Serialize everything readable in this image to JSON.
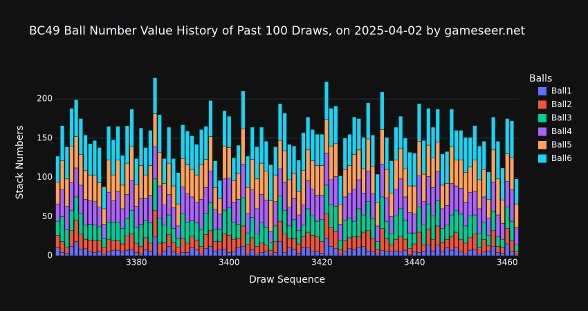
{
  "chart_data": {
    "type": "bar",
    "stacked": true,
    "title": "BC49 Ball Number Value History of Past 100 Draws, on 2025-04-02 by gameseer.net",
    "x_label": "Draw Sequence",
    "y_label": "Stack Numbers",
    "legend_title": "Balls",
    "x": [
      3363,
      3364,
      3365,
      3366,
      3367,
      3368,
      3369,
      3370,
      3371,
      3372,
      3373,
      3374,
      3375,
      3376,
      3377,
      3378,
      3379,
      3380,
      3381,
      3382,
      3383,
      3384,
      3385,
      3386,
      3387,
      3388,
      3389,
      3390,
      3391,
      3392,
      3393,
      3394,
      3395,
      3396,
      3397,
      3398,
      3399,
      3400,
      3401,
      3402,
      3403,
      3404,
      3405,
      3406,
      3407,
      3408,
      3409,
      3410,
      3411,
      3412,
      3413,
      3414,
      3415,
      3416,
      3417,
      3418,
      3419,
      3420,
      3421,
      3422,
      3423,
      3424,
      3425,
      3426,
      3427,
      3428,
      3429,
      3430,
      3431,
      3432,
      3433,
      3434,
      3435,
      3436,
      3437,
      3438,
      3439,
      3440,
      3441,
      3442,
      3443,
      3444,
      3445,
      3446,
      3447,
      3448,
      3449,
      3450,
      3451,
      3452,
      3453,
      3454,
      3455,
      3456,
      3457,
      3458,
      3459,
      3460,
      3461,
      3462
    ],
    "series": [
      {
        "name": "Ball1",
        "color": "#636efa",
        "values": [
          10,
          4,
          3,
          12,
          18,
          8,
          9,
          5,
          4,
          6,
          2,
          5,
          7,
          7,
          5,
          7,
          8,
          4,
          2,
          8,
          6,
          24,
          2,
          6,
          12,
          5,
          2,
          4,
          4,
          10,
          8,
          2,
          9,
          12,
          6,
          8,
          8,
          4,
          5,
          10,
          12,
          2,
          8,
          2,
          4,
          6,
          2,
          4,
          18,
          4,
          10,
          8,
          3,
          10,
          10,
          5,
          6,
          3,
          22,
          12,
          9,
          2,
          5,
          9,
          8,
          10,
          12,
          6,
          6,
          2,
          7,
          5,
          6,
          6,
          5,
          7,
          1,
          5,
          4,
          6,
          14,
          6,
          14,
          5,
          10,
          7,
          10,
          5,
          2,
          7,
          8,
          2,
          5,
          6,
          12,
          4,
          3,
          15,
          5,
          2
        ]
      },
      {
        "name": "Ball2",
        "color": "#ef553b",
        "values": [
          16,
          14,
          8,
          20,
          27,
          20,
          12,
          15,
          16,
          13,
          8,
          16,
          12,
          12,
          10,
          18,
          20,
          12,
          10,
          15,
          10,
          34,
          14,
          11,
          15,
          12,
          9,
          18,
          12,
          15,
          12,
          10,
          18,
          20,
          12,
          10,
          20,
          22,
          16,
          12,
          26,
          12,
          15,
          10,
          12,
          8,
          5,
          14,
          26,
          24,
          12,
          14,
          12,
          14,
          20,
          21,
          18,
          15,
          32,
          24,
          22,
          6,
          14,
          14,
          16,
          14,
          18,
          26,
          16,
          6,
          28,
          17,
          8,
          15,
          20,
          14,
          8,
          10,
          26,
          8,
          20,
          15,
          24,
          12,
          11,
          17,
          20,
          16,
          14,
          16,
          20,
          8,
          16,
          7,
          20,
          8,
          7,
          20,
          14,
          4
        ]
      },
      {
        "name": "Ball3",
        "color": "#00cc96",
        "values": [
          18,
          32,
          22,
          26,
          30,
          26,
          18,
          20,
          19,
          18,
          12,
          22,
          24,
          24,
          20,
          22,
          30,
          20,
          28,
          22,
          26,
          40,
          32,
          22,
          25,
          18,
          11,
          32,
          27,
          20,
          22,
          22,
          27,
          36,
          16,
          16,
          30,
          35,
          22,
          18,
          36,
          15,
          26,
          16,
          26,
          22,
          10,
          20,
          32,
          30,
          16,
          24,
          17,
          15,
          30,
          25,
          20,
          28,
          36,
          29,
          32,
          12,
          26,
          25,
          20,
          36,
          22,
          37,
          25,
          10,
          40,
          22,
          14,
          30,
          35,
          24,
          20,
          14,
          32,
          25,
          32,
          30,
          32,
          18,
          18,
          28,
          28,
          32,
          22,
          28,
          24,
          18,
          22,
          13,
          25,
          12,
          11,
          27,
          25,
          8
        ]
      },
      {
        "name": "Ball4",
        "color": "#ab63fa",
        "values": [
          22,
          34,
          30,
          36,
          37,
          36,
          33,
          30,
          30,
          25,
          18,
          38,
          27,
          39,
          25,
          31,
          38,
          27,
          33,
          28,
          35,
          41,
          41,
          26,
          26,
          26,
          16,
          34,
          36,
          30,
          26,
          38,
          33,
          40,
          25,
          19,
          40,
          38,
          25,
          32,
          43,
          25,
          35,
          32,
          36,
          35,
          14,
          31,
          35,
          36,
          24,
          27,
          20,
          26,
          36,
          34,
          33,
          31,
          41,
          32,
          38,
          20,
          30,
          32,
          41,
          37,
          28,
          39,
          32,
          20,
          42,
          30,
          22,
          34,
          38,
          30,
          26,
          24,
          40,
          30,
          35,
          36,
          37,
          25,
          25,
          40,
          31,
          33,
          30,
          30,
          30,
          32,
          32,
          22,
          37,
          28,
          20,
          33,
          40,
          22
        ]
      },
      {
        "name": "Ball5",
        "color": "#ffa15a",
        "values": [
          28,
          37,
          35,
          46,
          40,
          39,
          37,
          33,
          33,
          31,
          20,
          41,
          33,
          40,
          30,
          40,
          43,
          28,
          42,
          30,
          38,
          42,
          43,
          27,
          40,
          28,
          28,
          36,
          37,
          35,
          35,
          44,
          36,
          44,
          28,
          20,
          42,
          39,
          28,
          33,
          45,
          33,
          39,
          38,
          40,
          37,
          39,
          34,
          36,
          40,
          35,
          32,
          30,
          44,
          39,
          36,
          38,
          38,
          43,
          43,
          42,
          25,
          35,
          35,
          44,
          38,
          31,
          41,
          35,
          30,
          44,
          36,
          30,
          37,
          39,
          36,
          34,
          36,
          44,
          35,
          40,
          38,
          38,
          30,
          28,
          47,
          33,
          36,
          38,
          32,
          40,
          37,
          35,
          24,
          41,
          46,
          30,
          35,
          41,
          30
        ]
      },
      {
        "name": "Ball6",
        "color": "#19d3f3",
        "values": [
          33,
          45,
          41,
          48,
          47,
          46,
          45,
          40,
          45,
          45,
          28,
          43,
          45,
          43,
          38,
          48,
          48,
          33,
          48,
          35,
          45,
          46,
          48,
          32,
          46,
          35,
          40,
          43,
          43,
          43,
          39,
          45,
          42,
          46,
          34,
          23,
          45,
          40,
          29,
          36,
          48,
          40,
          41,
          41,
          46,
          38,
          46,
          36,
          47,
          48,
          45,
          35,
          40,
          48,
          42,
          40,
          40,
          40,
          48,
          48,
          48,
          37,
          40,
          40,
          48,
          40,
          40,
          46,
          40,
          36,
          48,
          41,
          41,
          42,
          41,
          39,
          43,
          42,
          48,
          43,
          47,
          39,
          42,
          40,
          41,
          48,
          38,
          38,
          45,
          38,
          44,
          43,
          36,
          35,
          42,
          48,
          41,
          45,
          47,
          32
        ]
      }
    ],
    "xlim": [
      3362.5,
      3462.5
    ],
    "xticks": [
      3380,
      3400,
      3420,
      3440,
      3460
    ],
    "ylim": [
      0,
      238
    ],
    "yticks": [
      0,
      50,
      100,
      150,
      200
    ],
    "grid": true,
    "legend": "right"
  }
}
